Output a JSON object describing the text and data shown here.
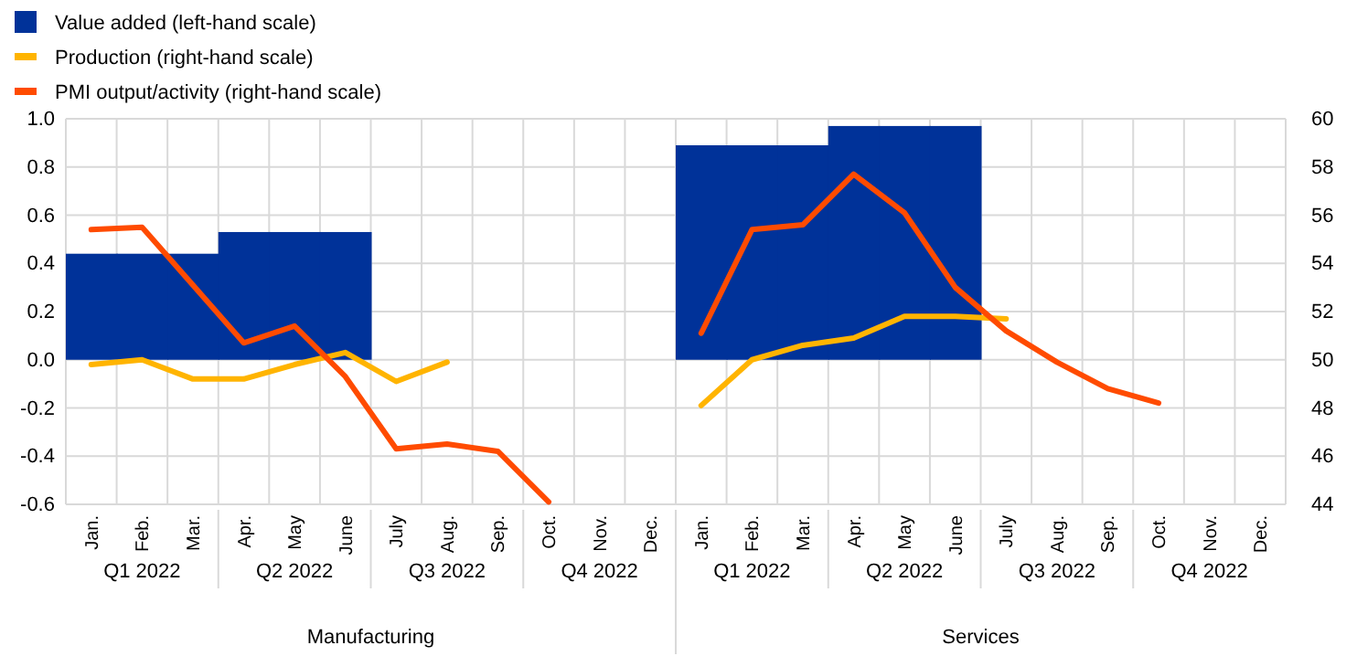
{
  "chart_data": {
    "type": "bar",
    "categories": [
      "Jan.",
      "Feb.",
      "Mar.",
      "Apr.",
      "May",
      "June",
      "July",
      "Aug.",
      "Sep.",
      "Oct.",
      "Nov.",
      "Dec.",
      "Jan.",
      "Feb.",
      "Mar.",
      "Apr.",
      "May",
      "June",
      "July",
      "Aug.",
      "Sep.",
      "Oct.",
      "Nov.",
      "Dec."
    ],
    "series": [
      {
        "name": "Value added (left-hand scale)",
        "color": "#003299",
        "values": [
          0.44,
          0.44,
          0.44,
          0.53,
          0.53,
          0.53,
          null,
          null,
          null,
          null,
          null,
          null,
          0.89,
          0.89,
          0.89,
          0.97,
          0.97,
          0.97,
          null,
          null,
          null,
          null,
          null,
          null
        ]
      },
      {
        "name": "Production (right-hand scale)",
        "type": "line",
        "axis": "y2",
        "color": "#ffb400",
        "values": [
          49.8,
          50.0,
          49.2,
          49.2,
          49.8,
          50.3,
          49.1,
          49.9,
          null,
          null,
          null,
          null,
          48.1,
          50.0,
          50.6,
          50.9,
          51.8,
          51.8,
          51.7,
          null,
          null,
          null,
          null,
          null
        ]
      },
      {
        "name": "PMI output/activity (right-hand scale)",
        "type": "line",
        "axis": "y2",
        "color": "#ff4b00",
        "values": [
          55.4,
          55.5,
          53.1,
          50.7,
          51.4,
          49.3,
          46.3,
          46.5,
          46.2,
          44.1,
          null,
          null,
          51.1,
          55.4,
          55.6,
          57.7,
          56.1,
          53.0,
          51.2,
          49.9,
          48.8,
          48.2,
          null,
          null
        ]
      }
    ],
    "ylim": [
      -0.6,
      1.0
    ],
    "yticks": [
      {
        "value": -0.6,
        "label": "-0.6"
      },
      {
        "value": -0.4,
        "label": "-0.4"
      },
      {
        "value": -0.2,
        "label": "-0.2"
      },
      {
        "value": 0,
        "label": "0.0"
      },
      {
        "value": 0.2,
        "label": "0.2"
      },
      {
        "value": 0.4,
        "label": "0.4"
      },
      {
        "value": 0.6,
        "label": "0.6"
      },
      {
        "value": 0.8,
        "label": "0.8"
      },
      {
        "value": 1.0,
        "label": "1.0"
      }
    ],
    "y2lim": [
      44,
      60
    ],
    "y2ticks": [
      44,
      46,
      48,
      50,
      52,
      54,
      56,
      58,
      60
    ],
    "annotations": [
      "Q1 2022",
      "Q2 2022",
      "Q3 2022",
      "Q4 2022",
      "Q1 2022",
      "Q2 2022",
      "Q3 2022",
      "Q4 2022",
      "Manufacturing",
      "Services"
    ],
    "grid": true,
    "legend": "top left",
    "line_style": "solid",
    "marker": "none"
  }
}
